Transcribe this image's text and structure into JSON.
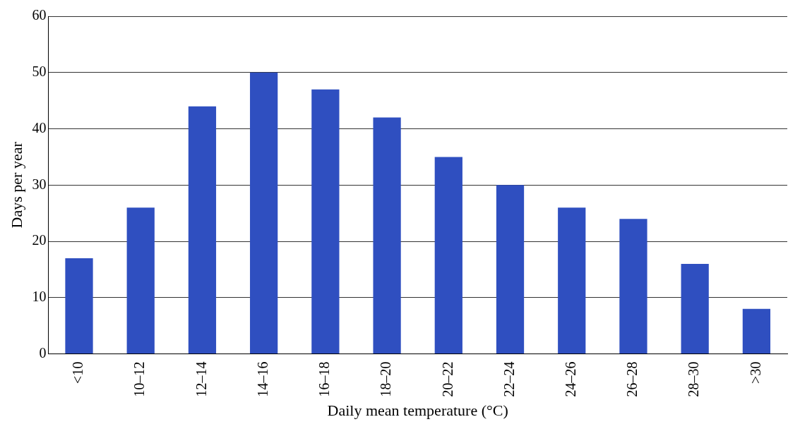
{
  "chart_data": {
    "type": "bar",
    "xlabel": "Daily mean temperature (°C)",
    "ylabel": "Days per year",
    "categories": [
      "<10",
      "10–12",
      "12–14",
      "14–16",
      "16–18",
      "18–20",
      "20–22",
      "22–24",
      "24–26",
      "26–28",
      "28–30",
      ">30"
    ],
    "values": [
      17,
      26,
      44,
      50,
      47,
      42,
      35,
      30,
      26,
      24,
      16,
      8
    ],
    "color": "#2f4fc0",
    "ylim": [
      0,
      60
    ],
    "yticks": [
      0,
      10,
      20,
      30,
      40,
      50,
      60
    ],
    "grid": "y",
    "legend": false
  }
}
